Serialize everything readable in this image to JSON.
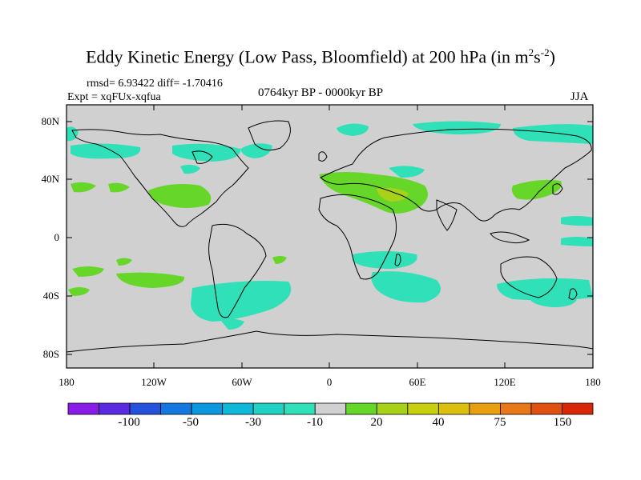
{
  "title": {
    "main": "Eddy Kinetic Energy (Low Pass, Bloomfield) at 200 hPa (in m",
    "sup1": "2",
    "mid": "s",
    "sup2": "-2",
    "end": ")"
  },
  "stats": "rmsd= 6.93422 diff= -1.70416",
  "expt": "Expt = xqFUx-xqfua",
  "period": "0764kyr BP - 0000kyr BP",
  "season": "JJA",
  "axes": {
    "lat_labels": [
      "80N",
      "40N",
      "0",
      "40S",
      "80S"
    ],
    "lon_labels": [
      "180",
      "120W",
      "60W",
      "0",
      "60E",
      "120E",
      "180"
    ]
  },
  "colors": {
    "land_background": "#d0d0d0",
    "neg_small": "#2fe0b8",
    "pos_small": "#66d629",
    "pos_mid": "#a8d21a",
    "coast": "#000000"
  },
  "colorbar": {
    "labels": [
      "-100",
      "-50",
      "-30",
      "-10",
      "20",
      "40",
      "75",
      "150"
    ],
    "colors": [
      "#8a1ce8",
      "#5a2ae0",
      "#2452dc",
      "#1478e0",
      "#0c98e0",
      "#10b8d8",
      "#20d2c4",
      "#2fe0b8",
      "#d0d0d0",
      "#66d629",
      "#a8d21a",
      "#c8d010",
      "#dcc010",
      "#e8a010",
      "#e87818",
      "#e05010",
      "#d82808"
    ]
  }
}
